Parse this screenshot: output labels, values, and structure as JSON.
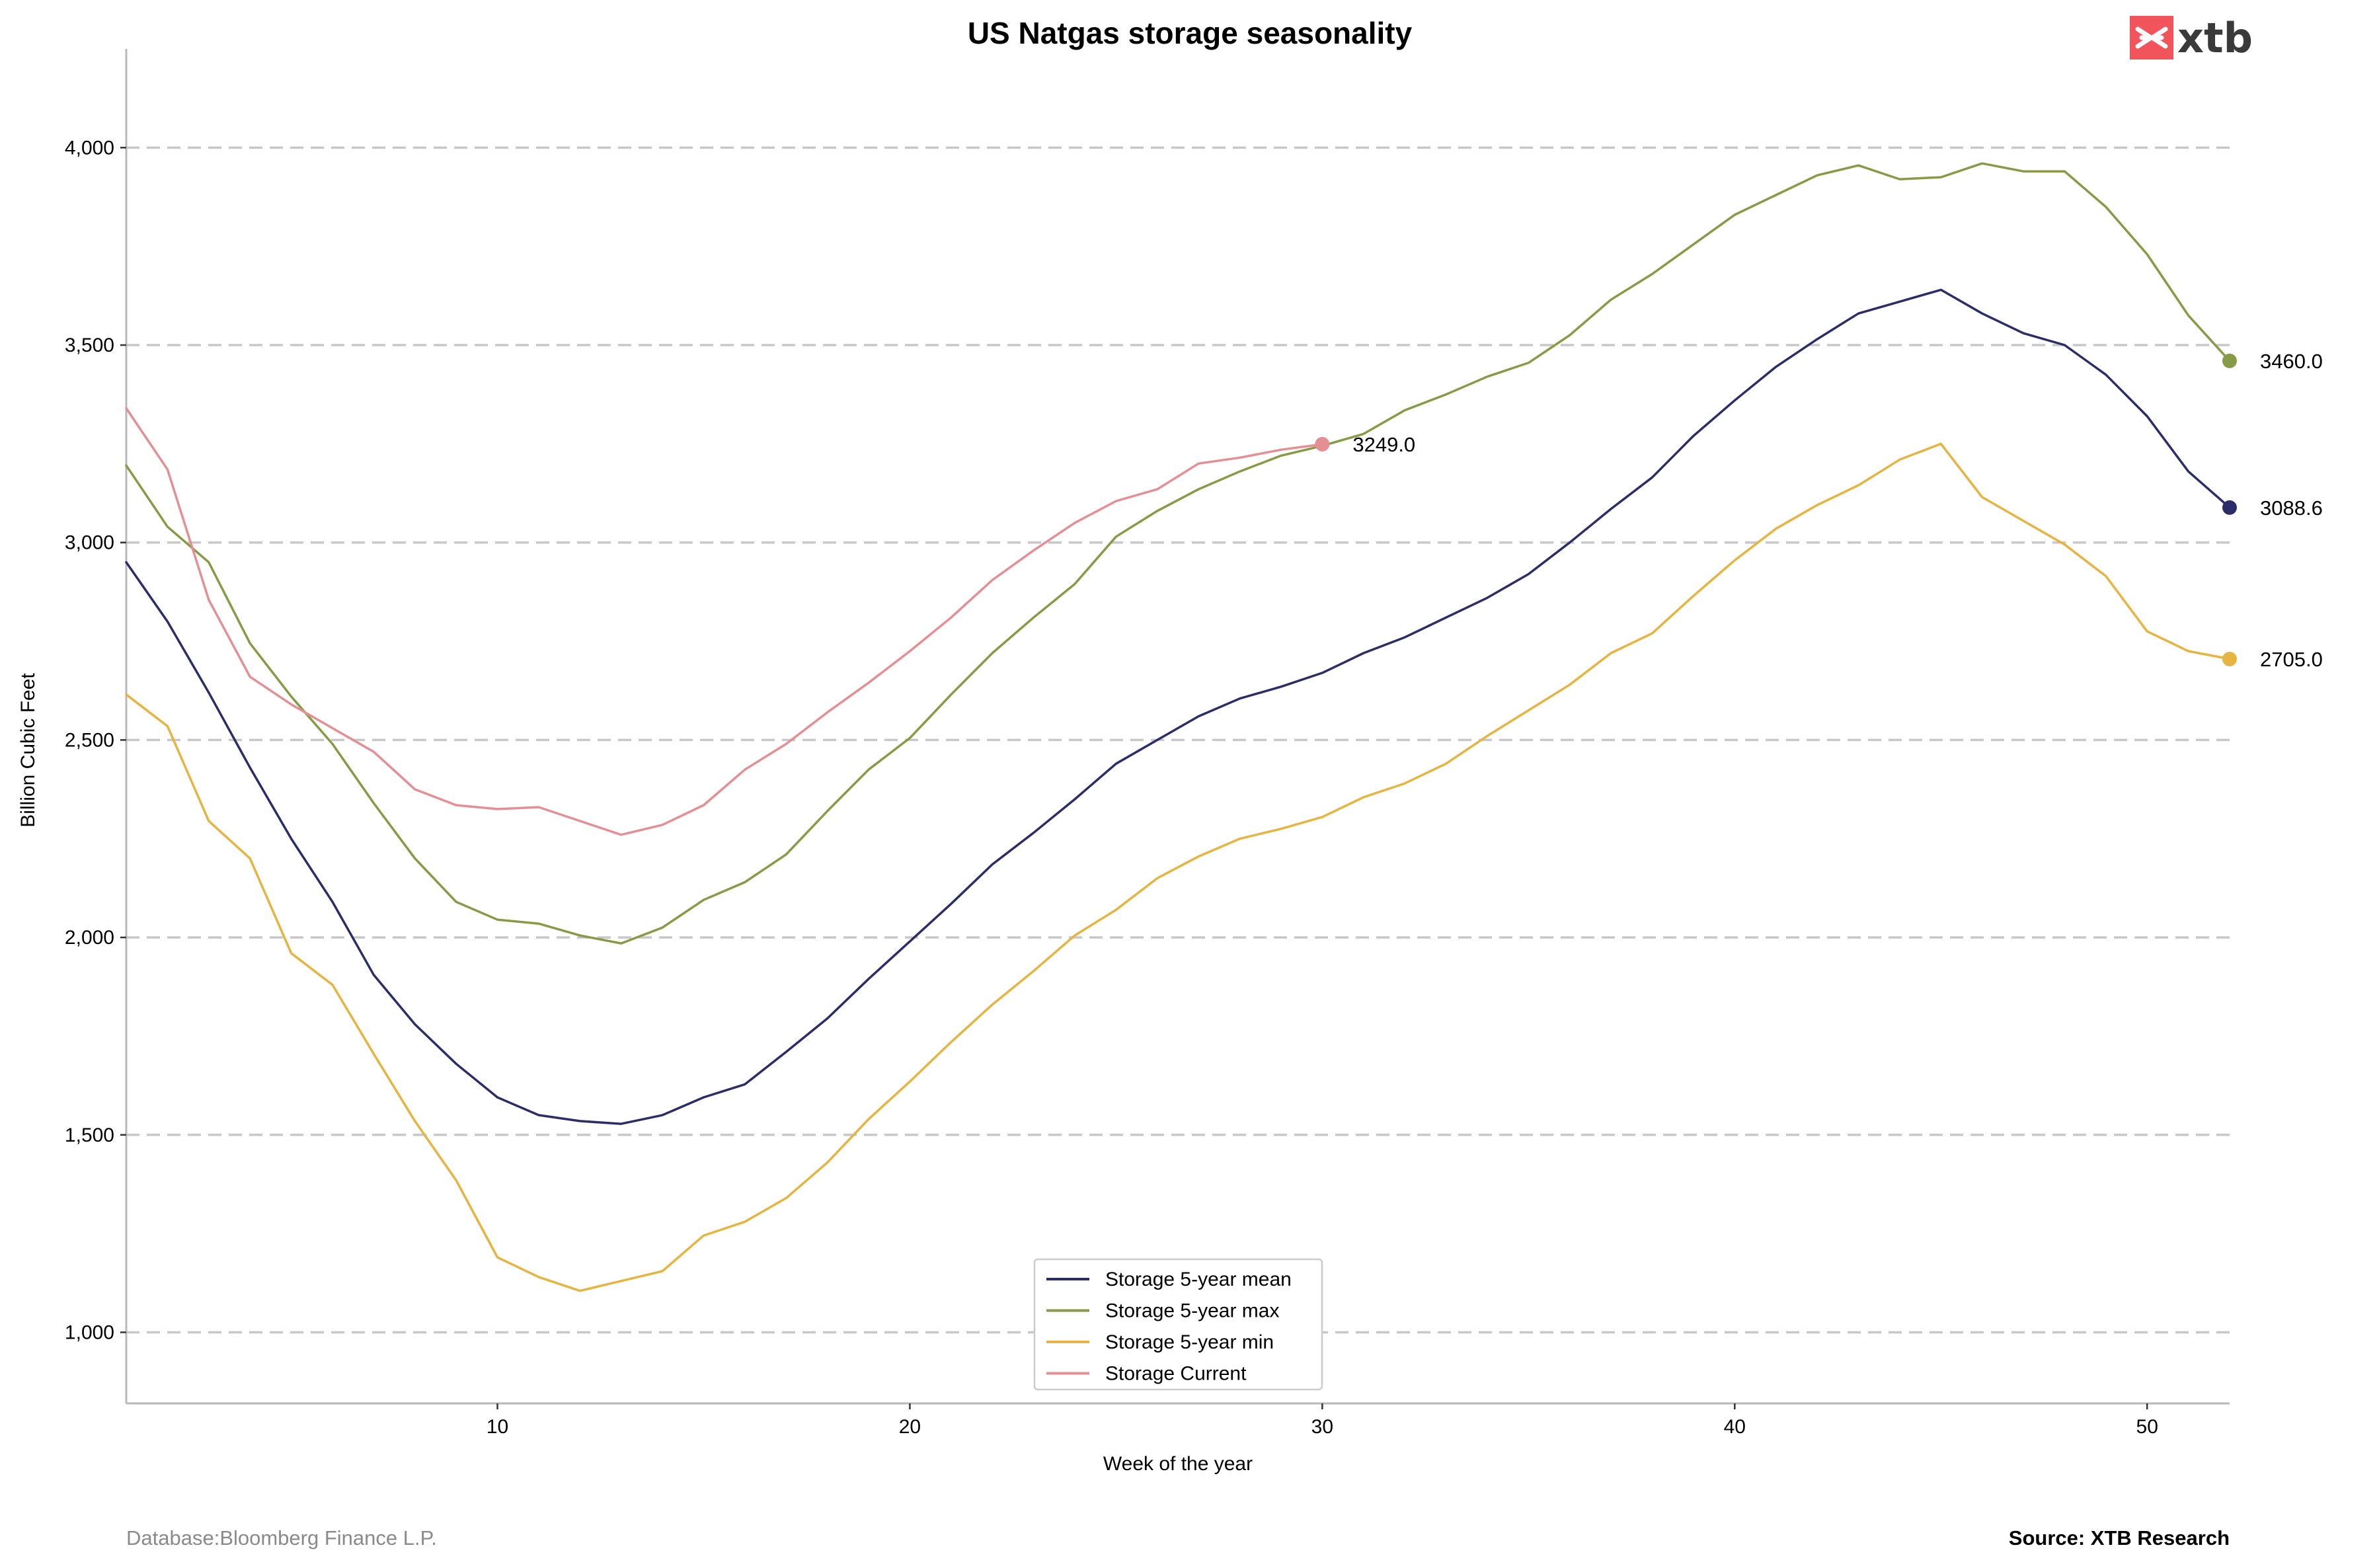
{
  "chart_data": {
    "type": "line",
    "title": "US Natgas storage seasonality",
    "xlabel": "Week of the year",
    "ylabel": "Billion Cubic Feet",
    "xlim": [
      1,
      52
    ],
    "ylim": [
      820,
      4250
    ],
    "x_ticks": [
      10,
      20,
      30,
      40,
      50
    ],
    "y_ticks": [
      1000,
      1500,
      2000,
      2500,
      3000,
      3500,
      4000
    ],
    "y_tick_labels": [
      "1,000",
      "1,500",
      "2,000",
      "2,500",
      "3,000",
      "3,500",
      "4,000"
    ],
    "grid": "horizontal dashed",
    "legend_position": "bottom-center",
    "series": [
      {
        "name": "Storage 5-year mean",
        "color": "#2b2d69",
        "x": [
          1,
          2,
          3,
          4,
          5,
          6,
          7,
          8,
          9,
          10,
          11,
          12,
          13,
          14,
          15,
          16,
          17,
          18,
          19,
          20,
          21,
          22,
          23,
          24,
          25,
          26,
          27,
          28,
          29,
          30,
          31,
          32,
          33,
          34,
          35,
          36,
          37,
          38,
          39,
          40,
          41,
          42,
          43,
          44,
          45,
          46,
          47,
          48,
          49,
          50,
          51,
          52
        ],
        "values": [
          2950,
          2800,
          2620,
          2430,
          2250,
          2090,
          1905,
          1780,
          1680,
          1595,
          1550,
          1535,
          1528,
          1550,
          1595,
          1628,
          1710,
          1795,
          1895,
          1990,
          2085,
          2185,
          2265,
          2350,
          2440,
          2500,
          2560,
          2605,
          2635,
          2670,
          2720,
          2760,
          2810,
          2860,
          2920,
          3000,
          3085,
          3165,
          3270,
          3360,
          3445,
          3515,
          3580,
          3610,
          3640,
          3580,
          3530,
          3500,
          3425,
          3320,
          3180,
          3088.6
        ],
        "end_label": "3088.6"
      },
      {
        "name": "Storage 5-year max",
        "color": "#879a46",
        "x": [
          1,
          2,
          3,
          4,
          5,
          6,
          7,
          8,
          9,
          10,
          11,
          12,
          13,
          14,
          15,
          16,
          17,
          18,
          19,
          20,
          21,
          22,
          23,
          24,
          25,
          26,
          27,
          28,
          29,
          30,
          31,
          32,
          33,
          34,
          35,
          36,
          37,
          38,
          39,
          40,
          41,
          42,
          43,
          44,
          45,
          46,
          47,
          48,
          49,
          50,
          51,
          52
        ],
        "values": [
          3195,
          3040,
          2950,
          2745,
          2610,
          2490,
          2340,
          2200,
          2090,
          2045,
          2035,
          2005,
          1985,
          2025,
          2095,
          2140,
          2210,
          2320,
          2425,
          2505,
          2615,
          2720,
          2810,
          2895,
          3015,
          3080,
          3135,
          3180,
          3220,
          3245,
          3275,
          3335,
          3375,
          3420,
          3455,
          3525,
          3615,
          3680,
          3755,
          3830,
          3880,
          3930,
          3955,
          3920,
          3925,
          3960,
          3940,
          3940,
          3850,
          3730,
          3575,
          3460.0
        ],
        "end_label": "3460.0"
      },
      {
        "name": "Storage 5-year min",
        "color": "#e6b440",
        "x": [
          1,
          2,
          3,
          4,
          5,
          6,
          7,
          8,
          9,
          10,
          11,
          12,
          13,
          14,
          15,
          16,
          17,
          18,
          19,
          20,
          21,
          22,
          23,
          24,
          25,
          26,
          27,
          28,
          29,
          30,
          31,
          32,
          33,
          34,
          35,
          36,
          37,
          38,
          39,
          40,
          41,
          42,
          43,
          44,
          45,
          46,
          47,
          48,
          49,
          50,
          51,
          52
        ],
        "values": [
          2615,
          2535,
          2295,
          2200,
          1960,
          1880,
          1705,
          1535,
          1385,
          1190,
          1140,
          1105,
          1130,
          1155,
          1245,
          1280,
          1340,
          1430,
          1540,
          1635,
          1735,
          1830,
          1915,
          2005,
          2070,
          2150,
          2205,
          2250,
          2275,
          2305,
          2355,
          2390,
          2440,
          2510,
          2575,
          2640,
          2720,
          2770,
          2865,
          2955,
          3035,
          3095,
          3145,
          3210,
          3250,
          3115,
          3055,
          2995,
          2915,
          2775,
          2725,
          2705.0
        ],
        "end_label": "2705.0"
      },
      {
        "name": "Storage Current",
        "color": "#e48f93",
        "x": [
          1,
          2,
          3,
          4,
          5,
          6,
          7,
          8,
          9,
          10,
          11,
          12,
          13,
          14,
          15,
          16,
          17,
          18,
          19,
          20,
          21,
          22,
          23,
          24,
          25,
          26,
          27,
          28,
          29,
          30
        ],
        "values": [
          3340,
          3185,
          2855,
          2660,
          2590,
          2530,
          2470,
          2375,
          2335,
          2325,
          2330,
          2295,
          2260,
          2285,
          2335,
          2425,
          2490,
          2570,
          2645,
          2725,
          2810,
          2905,
          2980,
          3050,
          3105,
          3135,
          3200,
          3215,
          3235,
          3249.0
        ],
        "end_label": "3249.0"
      }
    ]
  },
  "logo": {
    "text": "xtb",
    "color": "#f2545b"
  },
  "footer": {
    "left": "Database:Bloomberg Finance L.P.",
    "right": "Source: XTB Research"
  }
}
